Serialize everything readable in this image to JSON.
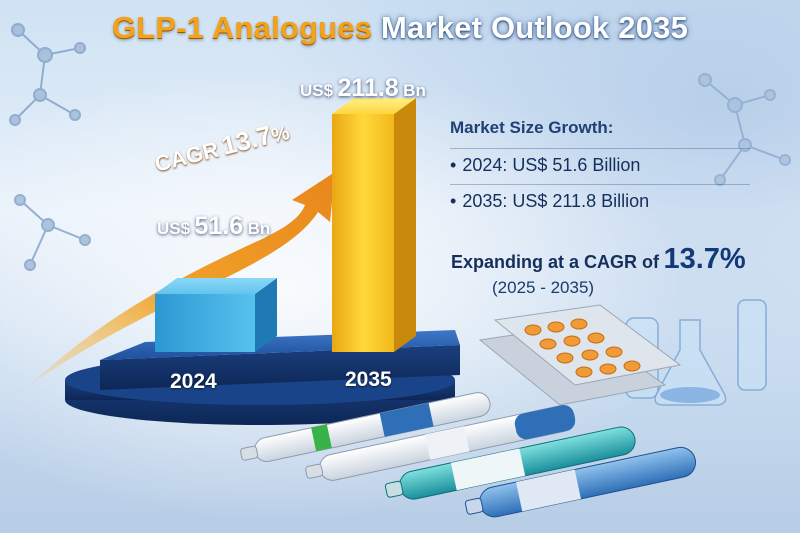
{
  "title": {
    "part1": "GLP-1 Analogues",
    "part2": "Market Outlook 2035"
  },
  "chart_data": {
    "type": "bar",
    "categories": [
      "2024",
      "2035"
    ],
    "values": [
      51.6,
      211.8
    ],
    "value_labels": [
      {
        "currency": "US$",
        "number": "51.6",
        "unit": "Bn"
      },
      {
        "currency": "US$",
        "number": "211.8",
        "unit": "Bn"
      }
    ],
    "colors": [
      "#3fb1e3",
      "#f2c21e"
    ],
    "cagr_arrow": {
      "label": "CAGR",
      "value": "13.7",
      "percent": "%"
    },
    "ylim": [
      0,
      211.8
    ]
  },
  "info_panel": {
    "heading": "Market Size Growth:",
    "items": [
      {
        "bullet": "•",
        "text": "2024: US$ 51.6 Billion"
      },
      {
        "bullet": "•",
        "text": "2035: US$ 211.8 Billion"
      }
    ],
    "cagr_text": "Expanding at a CAGR of",
    "cagr_value": "13.7%",
    "period": "(2025 - 2035)"
  },
  "icons": [
    "molecule-icon",
    "tablet-blister-icon",
    "injection-pen-icon",
    "lab-flask-icon"
  ]
}
